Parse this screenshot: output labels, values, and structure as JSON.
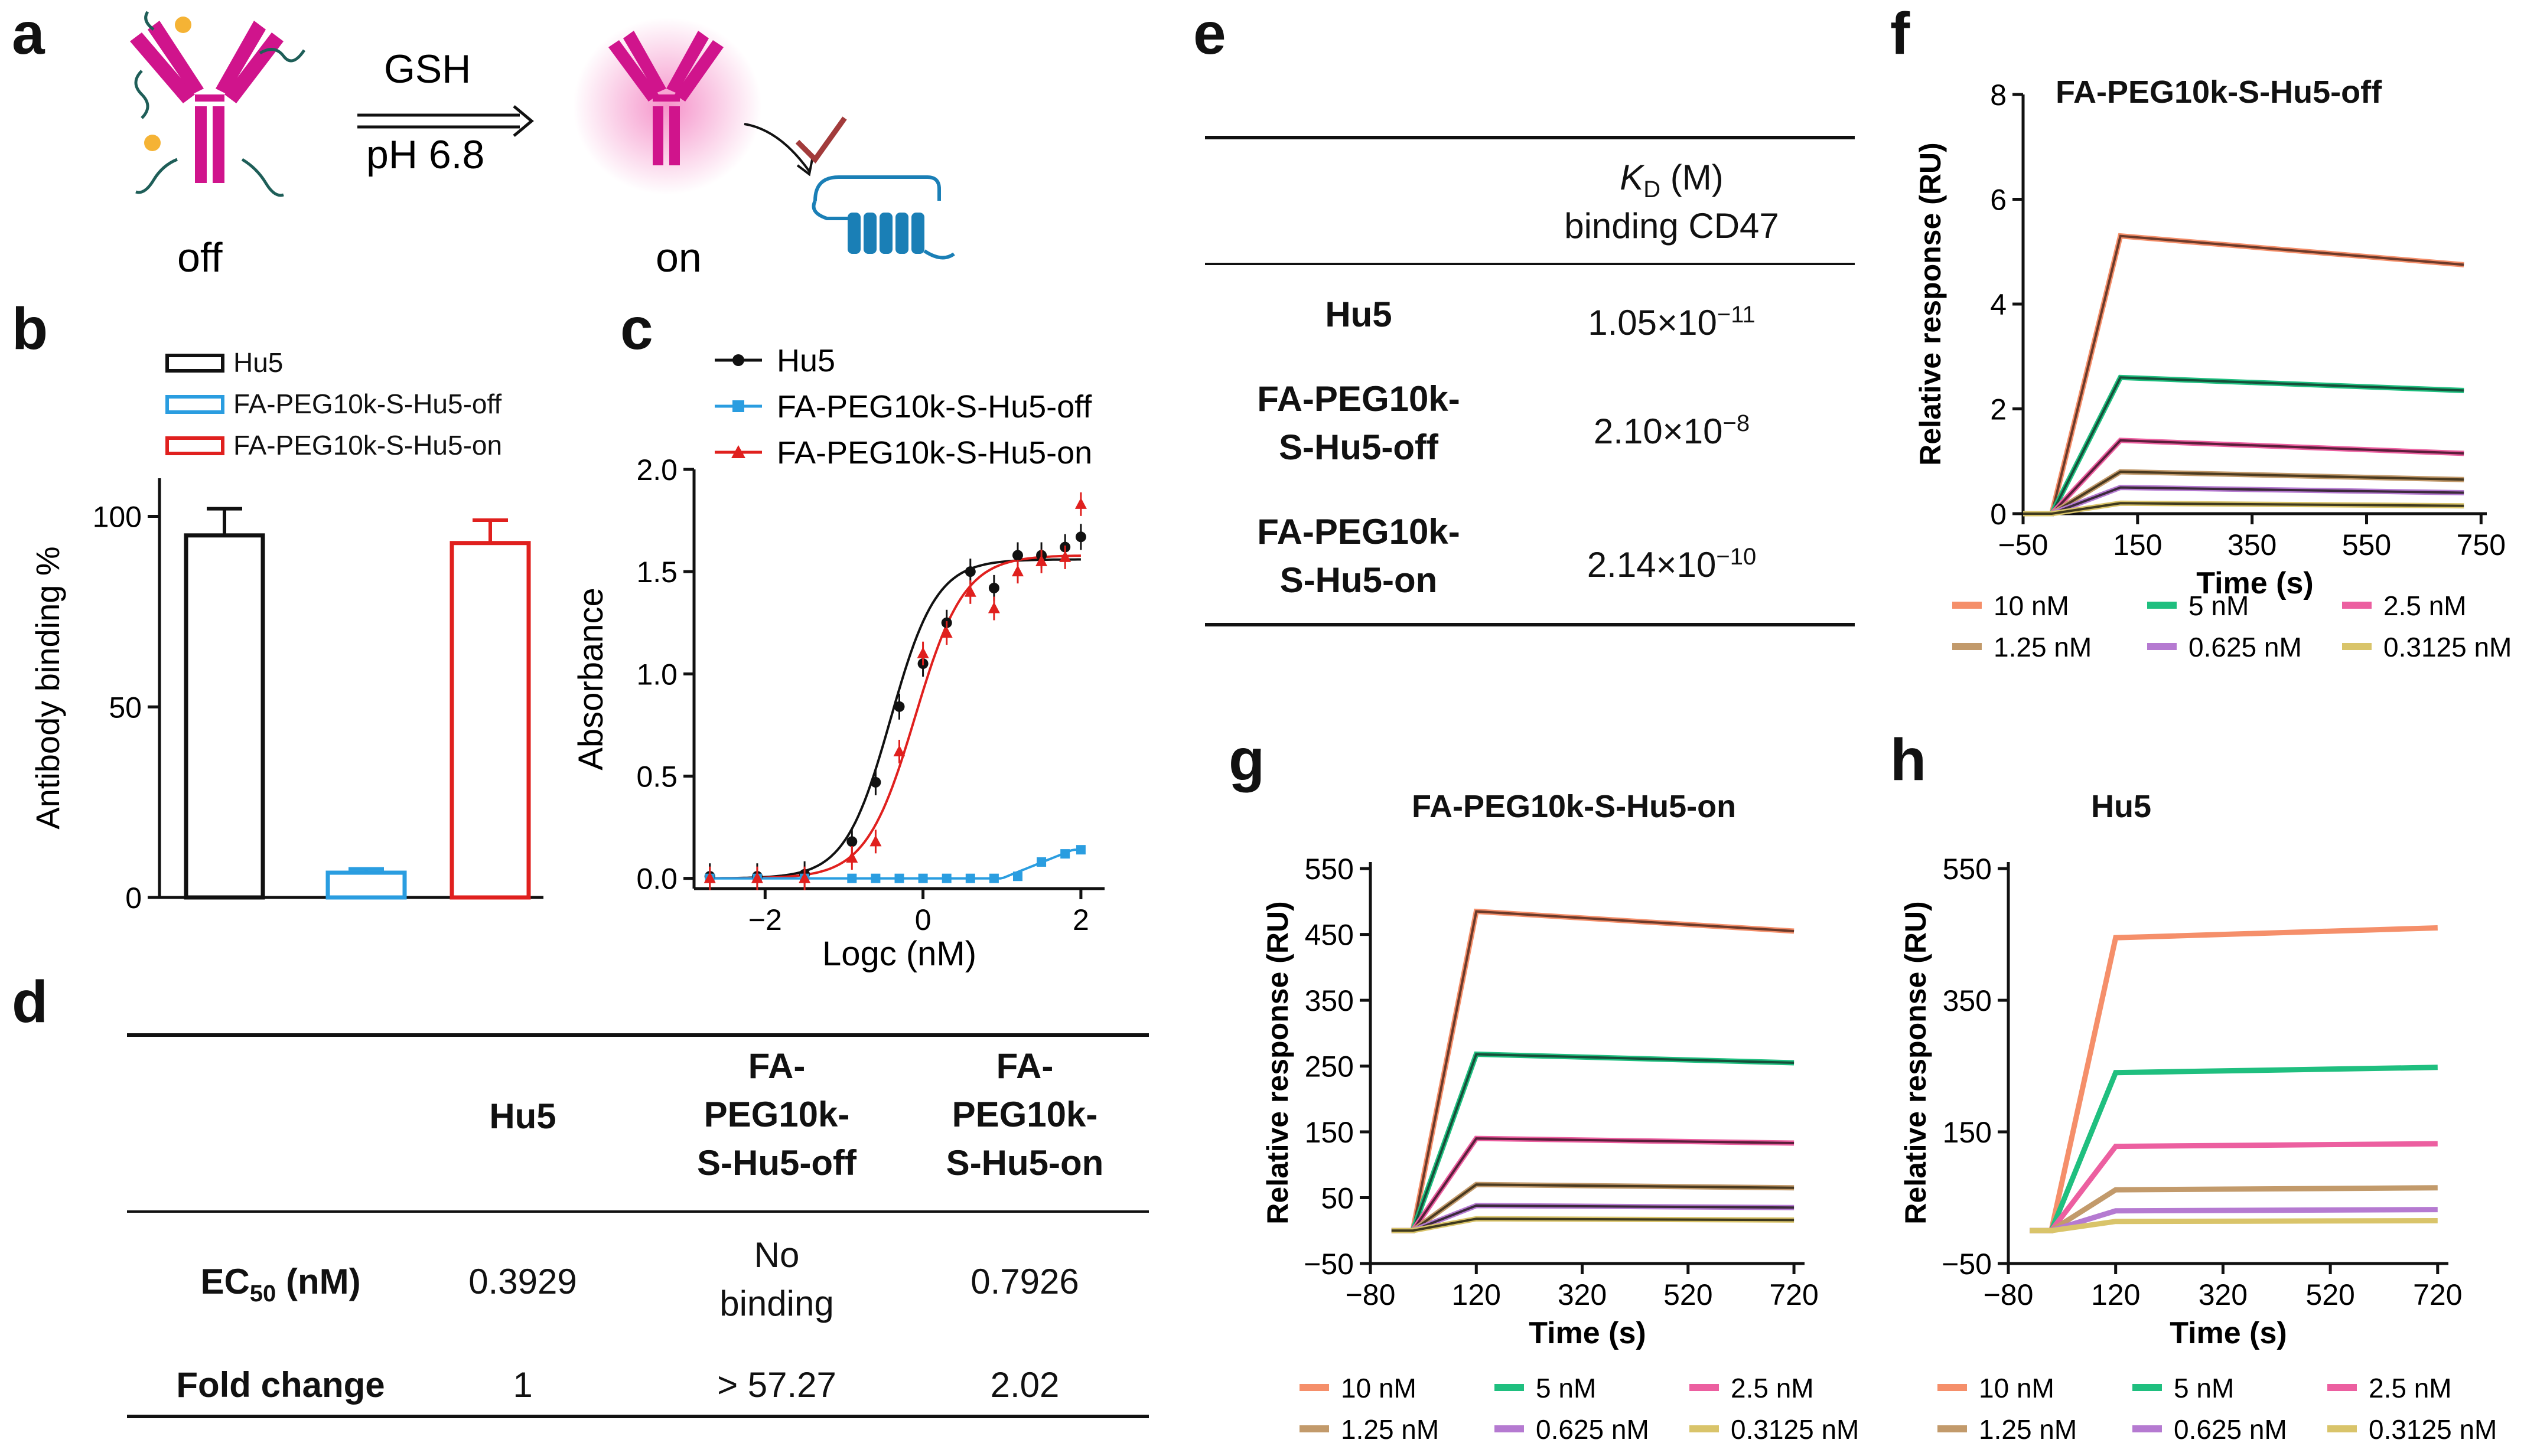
{
  "panel_labels": {
    "a": "a",
    "b": "b",
    "c": "c",
    "d": "d",
    "e": "e",
    "f": "f",
    "g": "g",
    "h": "h"
  },
  "panel_a": {
    "arrow_top": "GSH",
    "arrow_bottom": "pH 6.8",
    "state_off": "off",
    "state_on": "on"
  },
  "colors": {
    "antibody": "#d0148c",
    "cd47": "#1a7fb6",
    "hu5": "#111111",
    "off": "#2a9de0",
    "on": "#e0201e",
    "c_10nM": "#f58f6a",
    "c_5nM": "#1fbf7f",
    "c_2_5nM": "#ec5fa0",
    "c_1_25nM": "#c29a6b",
    "c_0_625nM": "#b57ad1",
    "c_0_3125nM": "#d9c46a"
  },
  "panel_b": {
    "legend": [
      "Hu5",
      "FA-PEG10k-S-Hu5-off",
      "FA-PEG10k-S-Hu5-on"
    ],
    "ylabel": "Antibody binding %",
    "chart_data": {
      "type": "bar",
      "categories": [
        "Hu5",
        "FA-PEG10k-S-Hu5-off",
        "FA-PEG10k-S-Hu5-on"
      ],
      "values": [
        95,
        6.5,
        93
      ],
      "errors": [
        7,
        1,
        6
      ],
      "ylim": [
        0,
        110
      ],
      "yticks": [
        "0",
        "50",
        "100"
      ],
      "ylabel": "Antibody binding %"
    }
  },
  "panel_c": {
    "legend": [
      "Hu5",
      "FA-PEG10k-S-Hu5-off",
      "FA-PEG10k-S-Hu5-on"
    ],
    "chart_data": {
      "type": "scatter",
      "xlabel": "Logc (nM)",
      "ylabel": "Absorbance",
      "xlim": [
        -2.9,
        2.3
      ],
      "ylim": [
        -0.05,
        2.0
      ],
      "xticks": [
        "-2",
        "0",
        "2"
      ],
      "yticks": [
        "0.0",
        "0.5",
        "1.0",
        "1.5",
        "2.0"
      ],
      "series": [
        {
          "name": "Hu5",
          "x": [
            -2.7,
            -2.1,
            -1.5,
            -0.9,
            -0.6,
            -0.3,
            0.0,
            0.3,
            0.6,
            0.9,
            1.2,
            1.5,
            1.8,
            2.0
          ],
          "y": [
            0.01,
            0.01,
            0.02,
            0.18,
            0.47,
            0.84,
            1.05,
            1.25,
            1.5,
            1.42,
            1.58,
            1.58,
            1.62,
            1.67
          ]
        },
        {
          "name": "FA-PEG10k-S-Hu5-off",
          "x": [
            -2.7,
            -2.1,
            -1.5,
            -0.9,
            -0.6,
            -0.3,
            0.0,
            0.3,
            0.6,
            0.9,
            1.2,
            1.5,
            1.8,
            2.0
          ],
          "y": [
            0.0,
            0.0,
            0.0,
            0.0,
            0.0,
            0.0,
            0.0,
            0.0,
            0.0,
            0.0,
            0.01,
            0.08,
            0.12,
            0.14
          ]
        },
        {
          "name": "FA-PEG10k-S-Hu5-on",
          "x": [
            -2.7,
            -2.1,
            -1.5,
            -0.9,
            -0.6,
            -0.3,
            0.0,
            0.3,
            0.6,
            0.9,
            1.2,
            1.5,
            1.8,
            2.0
          ],
          "y": [
            0.0,
            0.0,
            0.0,
            0.1,
            0.18,
            0.62,
            1.1,
            1.2,
            1.4,
            1.32,
            1.5,
            1.55,
            1.57,
            1.83
          ]
        }
      ]
    }
  },
  "panel_d": {
    "headers": [
      "",
      "Hu5",
      "FA-\nPEG10k-\nS-Hu5-off",
      "FA-\nPEG10k-\nS-Hu5-on"
    ],
    "rows": [
      {
        "label": "EC",
        "label_sub": "50",
        "label_suffix": " (nM)",
        "cells": [
          "0.3929",
          "No\nbinding",
          "0.7926"
        ]
      },
      {
        "label": "Fold change",
        "cells": [
          "1",
          "> 57.27",
          "2.02"
        ]
      }
    ]
  },
  "panel_e": {
    "header_kd": "K",
    "header_kd_sub": "D",
    "header_kd_suffix": " (M)",
    "header_line2": "binding CD47",
    "rows": [
      {
        "name": "Hu5",
        "mant": "1.05×10",
        "exp": "−11"
      },
      {
        "name": "FA-PEG10k-\nS-Hu5-off",
        "mant": "2.10×10",
        "exp": "−8"
      },
      {
        "name": "FA-PEG10k-\nS-Hu5-on",
        "mant": "2.14×10",
        "exp": "−10"
      }
    ]
  },
  "spr_legend": [
    "10 nM",
    "5 nM",
    "2.5 nM",
    "1.25 nM",
    "0.625 nM",
    "0.3125 nM"
  ],
  "panel_f": {
    "title": "FA-PEG10k-S-Hu5-off",
    "chart_data": {
      "type": "line",
      "xlabel": "Time (s)",
      "ylabel": "Relative response (RU)",
      "xlim": [
        -50,
        760
      ],
      "ylim": [
        0,
        8
      ],
      "xticks": [
        "−50",
        "150",
        "350",
        "550",
        "750"
      ],
      "yticks": [
        "0",
        "2",
        "4",
        "6",
        "8"
      ],
      "series": [
        {
          "name": "10 nM",
          "values": [
            [
              -50,
              0
            ],
            [
              0,
              0
            ],
            [
              120,
              5.3
            ],
            [
              720,
              4.75
            ]
          ]
        },
        {
          "name": "5 nM",
          "values": [
            [
              -50,
              0
            ],
            [
              0,
              0
            ],
            [
              120,
              2.6
            ],
            [
              720,
              2.35
            ]
          ]
        },
        {
          "name": "2.5 nM",
          "values": [
            [
              -50,
              0
            ],
            [
              0,
              0
            ],
            [
              120,
              1.4
            ],
            [
              720,
              1.15
            ]
          ]
        },
        {
          "name": "1.25 nM",
          "values": [
            [
              -50,
              0
            ],
            [
              0,
              0
            ],
            [
              120,
              0.8
            ],
            [
              720,
              0.65
            ]
          ]
        },
        {
          "name": "0.625 nM",
          "values": [
            [
              -50,
              0
            ],
            [
              0,
              0
            ],
            [
              120,
              0.5
            ],
            [
              720,
              0.4
            ]
          ]
        },
        {
          "name": "0.3125 nM",
          "values": [
            [
              -50,
              0
            ],
            [
              0,
              0
            ],
            [
              120,
              0.2
            ],
            [
              720,
              0.15
            ]
          ]
        }
      ]
    }
  },
  "panel_g": {
    "title": "FA-PEG10k-S-Hu5-on",
    "chart_data": {
      "type": "line",
      "xlabel": "Time (s)",
      "ylabel": "Relative response (RU)",
      "xlim": [
        -80,
        740
      ],
      "ylim": [
        -50,
        560
      ],
      "xticks": [
        "−80",
        "120",
        "320",
        "520",
        "720"
      ],
      "yticks": [
        "−50",
        "50",
        "150",
        "250",
        "350",
        "450",
        "550"
      ],
      "series": [
        {
          "name": "10 nM",
          "values": [
            [
              -40,
              0
            ],
            [
              0,
              0
            ],
            [
              120,
              485
            ],
            [
              720,
              455
            ]
          ]
        },
        {
          "name": "5 nM",
          "values": [
            [
              -40,
              0
            ],
            [
              0,
              0
            ],
            [
              120,
              268
            ],
            [
              720,
              255
            ]
          ]
        },
        {
          "name": "2.5 nM",
          "values": [
            [
              -40,
              0
            ],
            [
              0,
              0
            ],
            [
              120,
              140
            ],
            [
              720,
              133
            ]
          ]
        },
        {
          "name": "1.25 nM",
          "values": [
            [
              -40,
              0
            ],
            [
              0,
              0
            ],
            [
              120,
              70
            ],
            [
              720,
              65
            ]
          ]
        },
        {
          "name": "0.625 nM",
          "values": [
            [
              -40,
              0
            ],
            [
              0,
              0
            ],
            [
              120,
              38
            ],
            [
              720,
              35
            ]
          ]
        },
        {
          "name": "0.3125 nM",
          "values": [
            [
              -40,
              0
            ],
            [
              0,
              0
            ],
            [
              120,
              18
            ],
            [
              720,
              16
            ]
          ]
        }
      ]
    }
  },
  "panel_h": {
    "title": "Hu5",
    "chart_data": {
      "type": "line",
      "xlabel": "Time (s)",
      "ylabel": "Relative response (RU)",
      "xlim": [
        -80,
        740
      ],
      "ylim": [
        -50,
        560
      ],
      "xticks": [
        "−80",
        "120",
        "320",
        "520",
        "720"
      ],
      "yticks": [
        "−50",
        "150",
        "350",
        "550"
      ],
      "series": [
        {
          "name": "10 nM",
          "values": [
            [
              -40,
              0
            ],
            [
              0,
              0
            ],
            [
              120,
              445
            ],
            [
              720,
              460
            ]
          ]
        },
        {
          "name": "5 nM",
          "values": [
            [
              -40,
              0
            ],
            [
              0,
              0
            ],
            [
              120,
              240
            ],
            [
              720,
              248
            ]
          ]
        },
        {
          "name": "2.5 nM",
          "values": [
            [
              -40,
              0
            ],
            [
              0,
              0
            ],
            [
              120,
              128
            ],
            [
              720,
              132
            ]
          ]
        },
        {
          "name": "1.25 nM",
          "values": [
            [
              -40,
              0
            ],
            [
              0,
              0
            ],
            [
              120,
              62
            ],
            [
              720,
              65
            ]
          ]
        },
        {
          "name": "0.625 nM",
          "values": [
            [
              -40,
              0
            ],
            [
              0,
              0
            ],
            [
              120,
              30
            ],
            [
              720,
              32
            ]
          ]
        },
        {
          "name": "0.3125 nM",
          "values": [
            [
              -40,
              0
            ],
            [
              0,
              0
            ],
            [
              120,
              14
            ],
            [
              720,
              15
            ]
          ]
        }
      ]
    }
  }
}
